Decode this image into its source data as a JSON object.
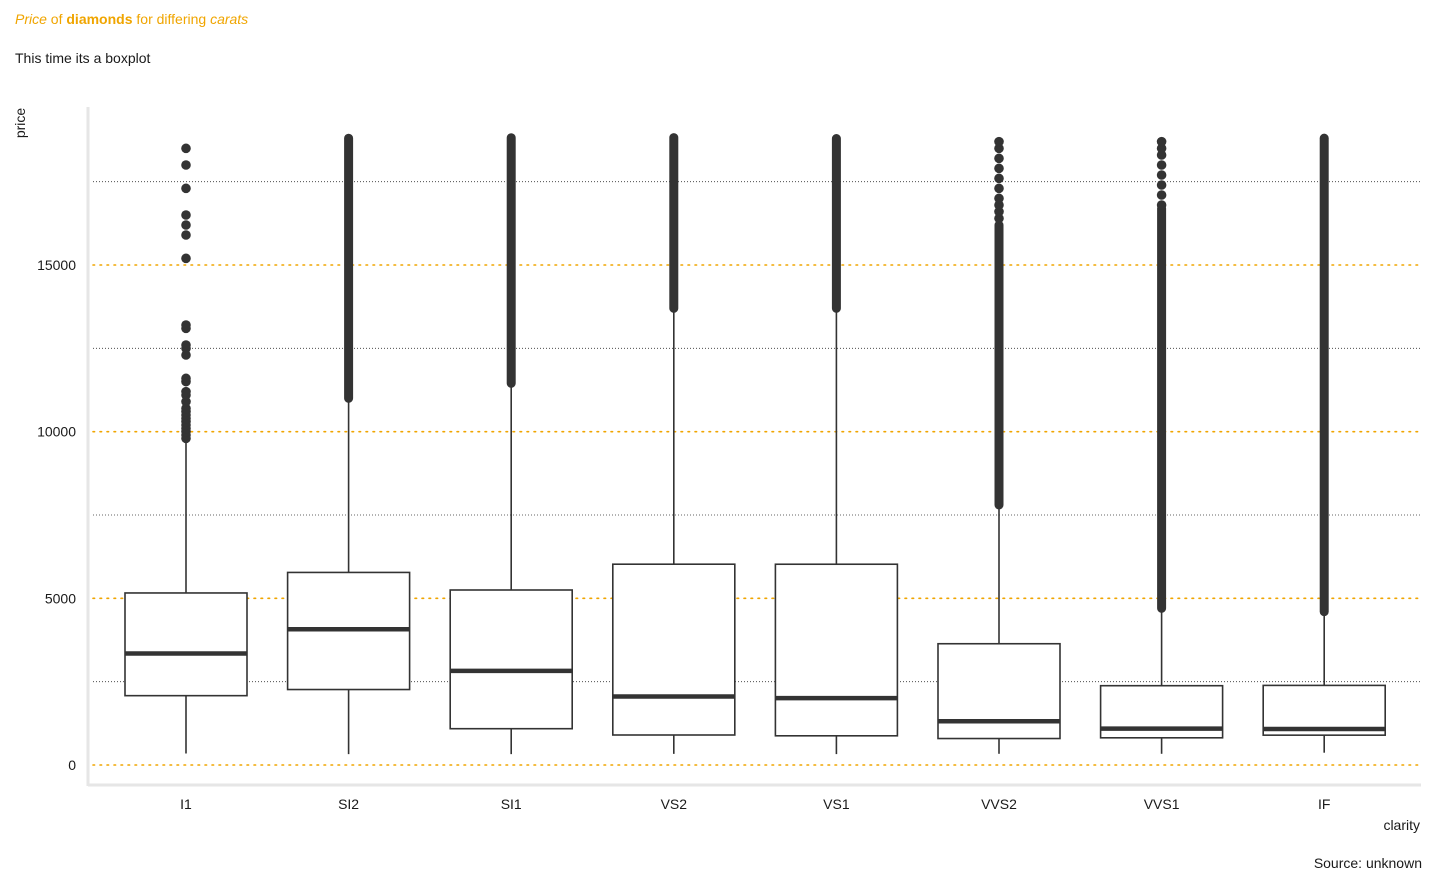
{
  "title": {
    "part1": "Price",
    "part2": " of ",
    "part3": "diamonds",
    "part4": " for differing ",
    "part5": "carats"
  },
  "subtitle": "This time its  a boxplot",
  "caption": "Source: unknown",
  "colors": {
    "accent": "#f0a500",
    "box": "#333333",
    "grid_minor": "#333333",
    "axis": "#e6e6e6"
  },
  "chart_data": {
    "type": "boxplot",
    "xlabel": "clarity",
    "ylabel": "price",
    "ylim": [
      -600,
      19500
    ],
    "yticks": [
      0,
      5000,
      10000,
      15000
    ],
    "ytick_labels": [
      "0",
      "5000",
      "10000",
      "15000"
    ],
    "minor_gridlines": [
      2500,
      7500,
      12500,
      17500
    ],
    "categories": [
      "I1",
      "SI2",
      "SI1",
      "VS2",
      "VS1",
      "VVS2",
      "VVS1",
      "IF"
    ],
    "boxes": [
      {
        "category": "I1",
        "whisker_low": 345,
        "q1": 2080,
        "median": 3344,
        "q3": 5161,
        "whisker_high": 9780,
        "outliers": [
          9800,
          9900,
          10000,
          10100,
          10200,
          10300,
          10400,
          10500,
          10600,
          10700,
          10900,
          11100,
          11200,
          11500,
          11600,
          12300,
          12500,
          12600,
          13100,
          13200,
          15200,
          15900,
          16200,
          16500,
          17300,
          18000,
          18500
        ]
      },
      {
        "category": "SI2",
        "whisker_low": 326,
        "q1": 2264,
        "median": 4072,
        "q3": 5777,
        "whisker_high": 11000,
        "outlier_band": [
          11000,
          18804
        ]
      },
      {
        "category": "SI1",
        "whisker_low": 326,
        "q1": 1089,
        "median": 2822,
        "q3": 5250,
        "whisker_high": 11450,
        "outlier_band": [
          11450,
          18818
        ]
      },
      {
        "category": "VS2",
        "whisker_low": 334,
        "q1": 900,
        "median": 2054,
        "q3": 6024,
        "whisker_high": 13700,
        "outlier_band": [
          13700,
          18823
        ]
      },
      {
        "category": "VS1",
        "whisker_low": 327,
        "q1": 876,
        "median": 2005,
        "q3": 6023,
        "whisker_high": 13700,
        "outlier_band": [
          13700,
          18795
        ]
      },
      {
        "category": "VVS2",
        "whisker_low": 336,
        "q1": 794,
        "median": 1311,
        "q3": 3638,
        "whisker_high": 7800,
        "outlier_band": [
          7800,
          16200
        ],
        "outliers": [
          16400,
          16600,
          16800,
          17000,
          17300,
          17600,
          17900,
          18200,
          18500,
          18700
        ]
      },
      {
        "category": "VVS1",
        "whisker_low": 336,
        "q1": 816,
        "median": 1093,
        "q3": 2379,
        "whisker_high": 4700,
        "outlier_band": [
          4700,
          16700
        ],
        "outliers": [
          16800,
          17100,
          17400,
          17700,
          18000,
          18300,
          18500,
          18700
        ]
      },
      {
        "category": "IF",
        "whisker_low": 369,
        "q1": 895,
        "median": 1080,
        "q3": 2388,
        "whisker_high": 4600,
        "outlier_band": [
          4600,
          18806
        ]
      }
    ]
  }
}
